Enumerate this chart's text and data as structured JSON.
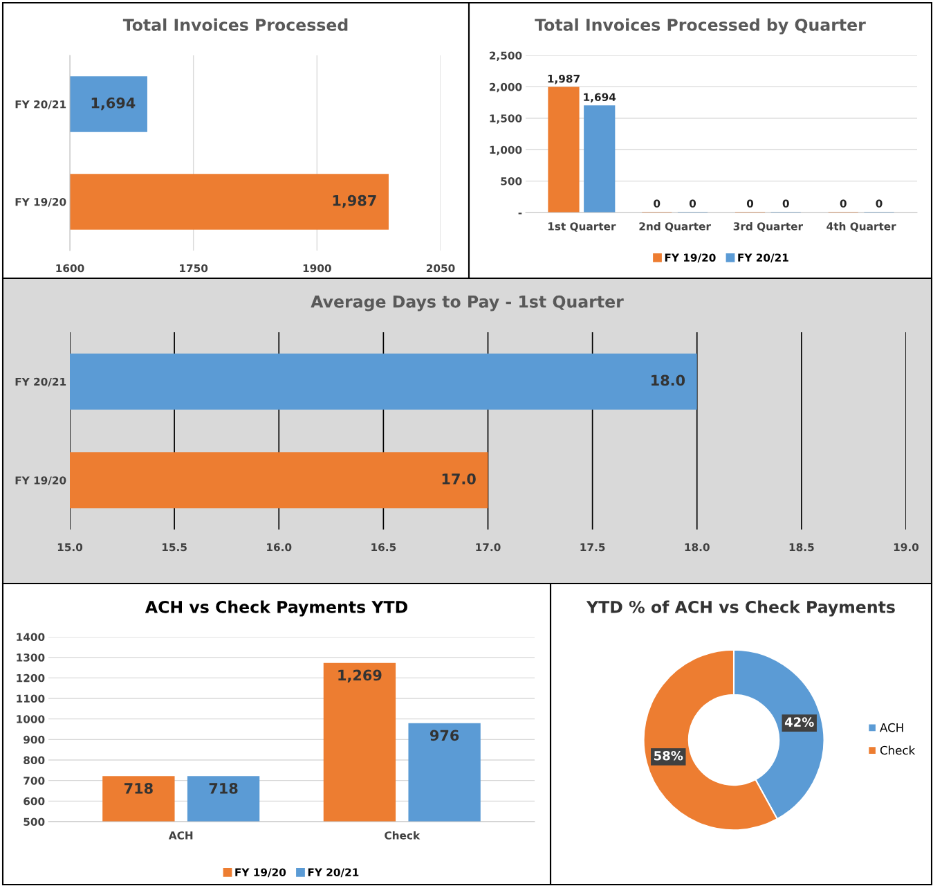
{
  "chart_data": [
    {
      "type": "bar",
      "title": "Total Invoices Processed",
      "orientation": "horizontal",
      "categories": [
        "FY 20/21",
        "FY 19/20"
      ],
      "values": [
        1694,
        1987
      ],
      "colors": [
        "#5b9bd5",
        "#ed7d31"
      ],
      "value_labels": [
        "1,694",
        "1,987"
      ],
      "xlim": [
        1600,
        2050
      ],
      "xticks": [
        1600,
        1750,
        1900,
        2050
      ],
      "grid": "x",
      "legend": false
    },
    {
      "type": "bar",
      "title": "Total Invoices Processed by Quarter",
      "categories": [
        "1st Quarter",
        "2nd Quarter",
        "3rd Quarter",
        "4th Quarter"
      ],
      "series": [
        {
          "name": "FY 19/20",
          "color": "#ed7d31",
          "values": [
            1987,
            0,
            0,
            0
          ],
          "value_labels": [
            "1,987",
            "0",
            "0",
            "0"
          ]
        },
        {
          "name": "FY 20/21",
          "color": "#5b9bd5",
          "values": [
            1694,
            0,
            0,
            0
          ],
          "value_labels": [
            "1,694",
            "0",
            "0",
            "0"
          ]
        }
      ],
      "ylim": [
        0,
        2500
      ],
      "yticks": [
        {
          "value": 0,
          "label": "-"
        },
        500,
        {
          "value": 1000,
          "label": "1,000"
        },
        {
          "value": 1500,
          "label": "1,500"
        },
        {
          "value": 2000,
          "label": "2,000"
        },
        {
          "value": 2500,
          "label": "2,500"
        }
      ],
      "grid": "y",
      "legend": "bottom"
    },
    {
      "type": "bar",
      "title": "Average Days to Pay - 1st Quarter",
      "orientation": "horizontal",
      "categories": [
        "FY 20/21",
        "FY 19/20"
      ],
      "values": [
        18.0,
        17.0
      ],
      "colors": [
        "#5b9bd5",
        "#ed7d31"
      ],
      "value_labels": [
        "18.0",
        "17.0"
      ],
      "xlim": [
        15.0,
        19.0
      ],
      "xticks": [
        {
          "value": 15,
          "label": "15.0"
        },
        15.5,
        {
          "value": 16,
          "label": "16.0"
        },
        16.5,
        {
          "value": 17,
          "label": "17.0"
        },
        17.5,
        {
          "value": 18,
          "label": "18.0"
        },
        18.5,
        {
          "value": 19,
          "label": "19.0"
        }
      ],
      "grid": "x",
      "legend": false
    },
    {
      "type": "bar",
      "title": "ACH vs Check Payments YTD",
      "categories": [
        "ACH",
        "Check"
      ],
      "series": [
        {
          "name": "FY 19/20",
          "color": "#ed7d31",
          "values": [
            718,
            1269
          ],
          "value_labels": [
            "718",
            "1,269"
          ]
        },
        {
          "name": "FY 20/21",
          "color": "#5b9bd5",
          "values": [
            718,
            976
          ],
          "value_labels": [
            "718",
            "976"
          ]
        }
      ],
      "ylim": [
        500,
        1400
      ],
      "yticks": [
        500,
        600,
        700,
        800,
        900,
        1000,
        1100,
        1200,
        1300,
        1400
      ],
      "grid": "y",
      "legend": "bottom"
    },
    {
      "type": "donut",
      "title": "YTD % of ACH vs Check Payments",
      "categories": [
        "ACH",
        "Check"
      ],
      "values": [
        42,
        58
      ],
      "colors": [
        "#5b9bd5",
        "#ed7d31"
      ],
      "value_labels": [
        "42%",
        "58%"
      ],
      "legend": "right"
    }
  ]
}
